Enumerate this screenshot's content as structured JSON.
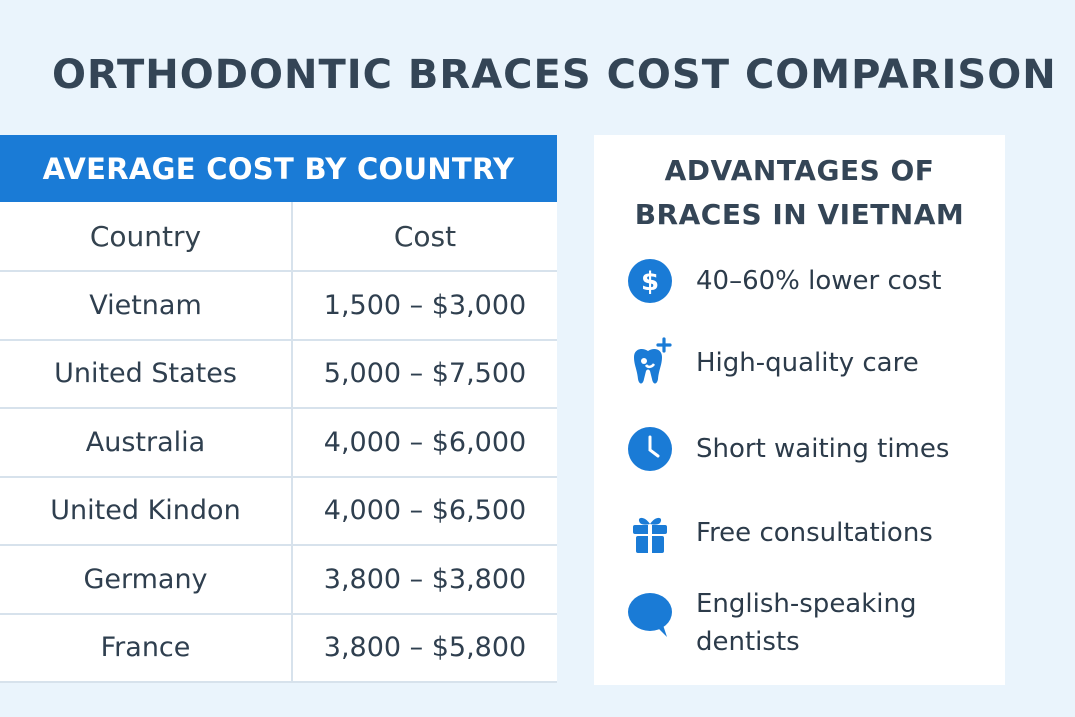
{
  "title": "ORTHODONTIC BRACES COST COMPARISON",
  "cost_table": {
    "header": "AVERAGE COST BY COUNTRY",
    "columns": [
      "Country",
      "Cost"
    ],
    "rows": [
      {
        "country": "Vietnam",
        "cost": "1,500 – $3,000"
      },
      {
        "country": "United States",
        "cost": "5,000 – $7,500"
      },
      {
        "country": "Australia",
        "cost": "4,000 – $6,000"
      },
      {
        "country": "United Kindon",
        "cost": "4,000 – $6,500"
      },
      {
        "country": "Germany",
        "cost": "3,800 – $3,800"
      },
      {
        "country": "France",
        "cost": "3,800 – $5,800"
      }
    ]
  },
  "advantages": {
    "title_line1": "ADVANTAGES OF",
    "title_line2": "BRACES IN VIETNAM",
    "items": [
      {
        "icon": "dollar-icon",
        "label": "40–60% lower cost"
      },
      {
        "icon": "tooth-icon",
        "label": "High-quality care"
      },
      {
        "icon": "clock-icon",
        "label": "Short waiting times"
      },
      {
        "icon": "gift-icon",
        "label": "Free consultations"
      },
      {
        "icon": "speech-bubble-icon",
        "label_line1": "English-speaking",
        "label_line2": "dentists"
      }
    ]
  },
  "colors": {
    "background": "#eaf4fc",
    "accent": "#1a7bd6",
    "text": "#344556"
  }
}
